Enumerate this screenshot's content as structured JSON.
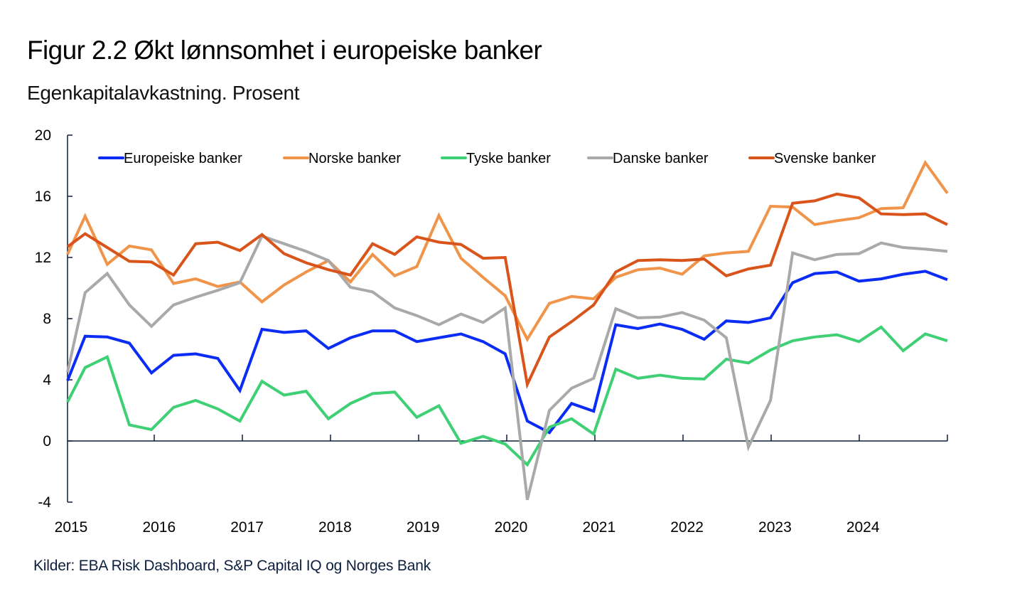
{
  "header": {
    "title": "Figur 2.2 Økt lønnsomhet i europeiske banker",
    "subtitle": "Egenkapitalavkastning. Prosent"
  },
  "footer": {
    "source": "Kilder: EBA Risk Dashboard, S&P Capital IQ og Norges Bank"
  },
  "chart_data": {
    "type": "line",
    "title": "Figur 2.2 Økt lønnsomhet i europeiske banker",
    "subtitle": "Egenkapitalavkastning. Prosent",
    "xlabel": "",
    "ylabel": "Prosent",
    "x_start": "2014Q4",
    "x_end": "2024Q4",
    "frequency": "quarterly",
    "x": [
      "2014Q4",
      "2015Q1",
      "2015Q2",
      "2015Q3",
      "2015Q4",
      "2016Q1",
      "2016Q2",
      "2016Q3",
      "2016Q4",
      "2017Q1",
      "2017Q2",
      "2017Q3",
      "2017Q4",
      "2018Q1",
      "2018Q2",
      "2018Q3",
      "2018Q4",
      "2019Q1",
      "2019Q2",
      "2019Q3",
      "2019Q4",
      "2020Q1",
      "2020Q2",
      "2020Q3",
      "2020Q4",
      "2021Q1",
      "2021Q2",
      "2021Q3",
      "2021Q4",
      "2022Q1",
      "2022Q2",
      "2022Q3",
      "2022Q4",
      "2023Q1",
      "2023Q2",
      "2023Q3",
      "2023Q4",
      "2024Q1",
      "2024Q2",
      "2024Q3",
      "2024Q4"
    ],
    "xtick_labels": [
      "2015",
      "2016",
      "2017",
      "2018",
      "2019",
      "2020",
      "2021",
      "2022",
      "2023",
      "2024"
    ],
    "yticks": [
      -4,
      0,
      4,
      8,
      12,
      16,
      20
    ],
    "ylim": [
      -4,
      20
    ],
    "grid": false,
    "legend_position": "top",
    "series": [
      {
        "name": "Europeiske banker",
        "color": "#0a2cf5",
        "values": [
          3.95,
          6.85,
          6.8,
          6.4,
          4.45,
          5.6,
          5.7,
          5.4,
          3.3,
          7.3,
          7.1,
          7.2,
          6.05,
          6.75,
          7.2,
          7.2,
          6.5,
          6.75,
          7.0,
          6.5,
          5.7,
          1.3,
          0.55,
          2.45,
          1.95,
          7.6,
          7.35,
          7.65,
          7.3,
          6.65,
          7.85,
          7.75,
          8.05,
          10.35,
          10.95,
          11.05,
          10.45,
          10.6,
          10.9,
          11.1,
          10.55
        ]
      },
      {
        "name": "Norske banker",
        "color": "#f0944a",
        "values": [
          12.2,
          14.7,
          11.55,
          12.75,
          12.5,
          10.3,
          10.6,
          10.1,
          10.4,
          9.1,
          10.2,
          11.05,
          11.8,
          10.4,
          12.2,
          10.8,
          11.4,
          14.75,
          11.95,
          10.7,
          9.5,
          6.65,
          9.0,
          9.45,
          9.3,
          10.7,
          11.2,
          11.3,
          10.9,
          12.1,
          12.3,
          12.4,
          15.35,
          15.3,
          14.15,
          14.4,
          14.6,
          15.2,
          15.25,
          18.2,
          16.2
        ]
      },
      {
        "name": "Tyske banker",
        "color": "#3fcf74",
        "values": [
          2.55,
          4.8,
          5.5,
          1.05,
          0.75,
          2.2,
          2.65,
          2.1,
          1.3,
          3.9,
          3.0,
          3.25,
          1.45,
          2.45,
          3.1,
          3.2,
          1.55,
          2.3,
          -0.15,
          0.3,
          -0.2,
          -1.55,
          0.9,
          1.45,
          0.45,
          4.7,
          4.1,
          4.3,
          4.1,
          4.05,
          5.35,
          5.1,
          5.95,
          6.55,
          6.8,
          6.95,
          6.5,
          7.45,
          5.9,
          7.0,
          6.55
        ]
      },
      {
        "name": "Danske banker",
        "color": "#a9a9a9",
        "values": [
          4.5,
          9.7,
          10.95,
          8.9,
          7.5,
          8.9,
          9.4,
          9.85,
          10.35,
          13.4,
          12.9,
          12.4,
          11.8,
          10.05,
          9.75,
          8.7,
          8.2,
          7.6,
          8.3,
          7.75,
          8.7,
          -3.85,
          2.0,
          3.45,
          4.1,
          8.65,
          8.05,
          8.1,
          8.4,
          7.9,
          6.75,
          -0.4,
          2.65,
          12.3,
          11.85,
          12.2,
          12.25,
          12.95,
          12.65,
          12.55,
          12.4
        ]
      },
      {
        "name": "Svenske banker",
        "color": "#d9541a",
        "values": [
          12.7,
          13.55,
          12.65,
          11.75,
          11.7,
          10.85,
          12.9,
          13.0,
          12.45,
          13.5,
          12.25,
          11.65,
          11.2,
          10.85,
          12.9,
          12.2,
          13.35,
          13.0,
          12.85,
          11.95,
          12.0,
          3.7,
          6.8,
          7.8,
          8.9,
          11.05,
          11.8,
          11.85,
          11.8,
          11.9,
          10.8,
          11.25,
          11.5,
          15.55,
          15.7,
          16.15,
          15.9,
          14.85,
          14.8,
          14.85,
          14.15
        ]
      }
    ]
  }
}
